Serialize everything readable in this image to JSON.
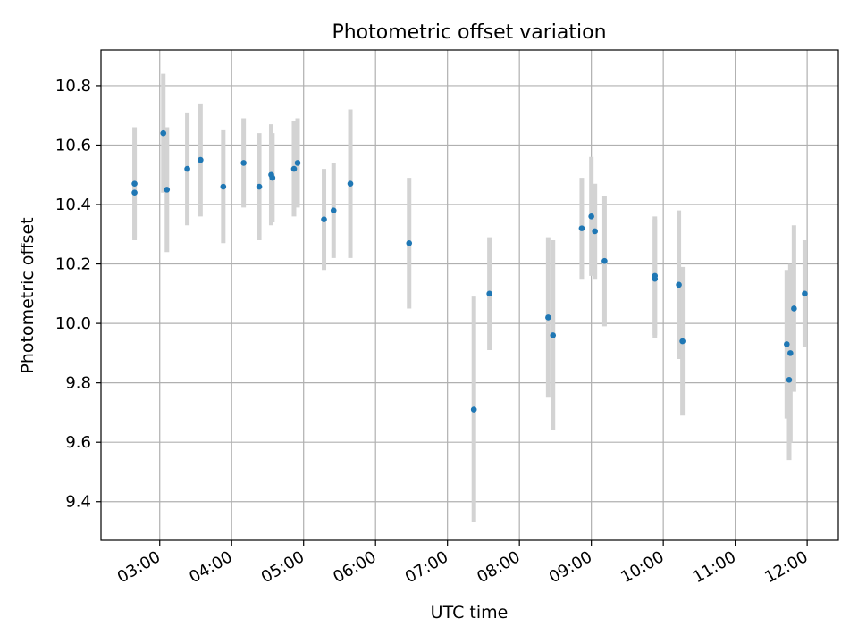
{
  "chart_data": {
    "type": "scatter",
    "title": "Photometric offset variation",
    "xlabel": "UTC time",
    "ylabel": "Photometric offset",
    "x_tick_labels": [
      "03:00",
      "04:00",
      "05:00",
      "06:00",
      "07:00",
      "08:00",
      "09:00",
      "10:00",
      "11:00",
      "12:00"
    ],
    "y_tick_labels": [
      "9.4",
      "9.6",
      "9.8",
      "10.0",
      "10.2",
      "10.4",
      "10.6",
      "10.8"
    ],
    "xlim": [
      "02:11",
      "12:26"
    ],
    "ylim": [
      9.27,
      10.92
    ],
    "grid": true,
    "legend": "none",
    "colors": {
      "marker": "#1f77b4",
      "errorbar": "#d3d3d3",
      "grid": "#b0b0b0"
    },
    "points": [
      {
        "x": "02:39",
        "y": 10.47,
        "yerr": 0.19
      },
      {
        "x": "02:39",
        "y": 10.44,
        "yerr": 0.15
      },
      {
        "x": "03:03",
        "y": 10.64,
        "yerr": 0.2
      },
      {
        "x": "03:06",
        "y": 10.45,
        "yerr": 0.21
      },
      {
        "x": "03:23",
        "y": 10.52,
        "yerr": 0.19
      },
      {
        "x": "03:34",
        "y": 10.55,
        "yerr": 0.19
      },
      {
        "x": "03:53",
        "y": 10.46,
        "yerr": 0.19
      },
      {
        "x": "04:10",
        "y": 10.54,
        "yerr": 0.15
      },
      {
        "x": "04:23",
        "y": 10.46,
        "yerr": 0.18
      },
      {
        "x": "04:33",
        "y": 10.5,
        "yerr": 0.17
      },
      {
        "x": "04:34",
        "y": 10.49,
        "yerr": 0.15
      },
      {
        "x": "04:52",
        "y": 10.52,
        "yerr": 0.16
      },
      {
        "x": "04:55",
        "y": 10.54,
        "yerr": 0.15
      },
      {
        "x": "05:17",
        "y": 10.35,
        "yerr": 0.17
      },
      {
        "x": "05:25",
        "y": 10.38,
        "yerr": 0.16
      },
      {
        "x": "05:39",
        "y": 10.47,
        "yerr": 0.25
      },
      {
        "x": "06:28",
        "y": 10.27,
        "yerr": 0.22
      },
      {
        "x": "07:22",
        "y": 9.71,
        "yerr": 0.38
      },
      {
        "x": "07:35",
        "y": 10.1,
        "yerr": 0.19
      },
      {
        "x": "08:24",
        "y": 10.02,
        "yerr": 0.27
      },
      {
        "x": "08:28",
        "y": 9.96,
        "yerr": 0.32
      },
      {
        "x": "08:52",
        "y": 10.32,
        "yerr": 0.17
      },
      {
        "x": "09:00",
        "y": 10.36,
        "yerr": 0.2
      },
      {
        "x": "09:03",
        "y": 10.31,
        "yerr": 0.16
      },
      {
        "x": "09:11",
        "y": 10.21,
        "yerr": 0.22
      },
      {
        "x": "09:53",
        "y": 10.15,
        "yerr": 0.2
      },
      {
        "x": "09:53",
        "y": 10.16,
        "yerr": 0.2
      },
      {
        "x": "10:13",
        "y": 10.13,
        "yerr": 0.25
      },
      {
        "x": "10:16",
        "y": 9.94,
        "yerr": 0.25
      },
      {
        "x": "11:43",
        "y": 9.93,
        "yerr": 0.25
      },
      {
        "x": "11:45",
        "y": 9.81,
        "yerr": 0.27
      },
      {
        "x": "11:46",
        "y": 9.9,
        "yerr": 0.3
      },
      {
        "x": "11:49",
        "y": 10.05,
        "yerr": 0.28
      },
      {
        "x": "11:58",
        "y": 10.1,
        "yerr": 0.18
      }
    ]
  }
}
